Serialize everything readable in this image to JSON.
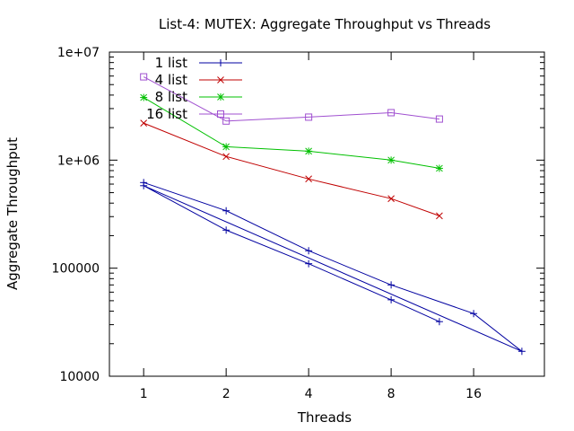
{
  "chart_data": {
    "type": "line",
    "title": "List-4: MUTEX: Aggregate Throughput vs Threads",
    "xlabel": "Threads",
    "ylabel": "Aggregate Throughput",
    "x_scale": "log2",
    "y_scale": "log10",
    "xlim": [
      0.75,
      29
    ],
    "ylim": [
      10000,
      10000000
    ],
    "x_ticks": [
      1,
      2,
      4,
      8,
      16
    ],
    "x_tick_labels": [
      "1",
      "2",
      "4",
      "8",
      "16"
    ],
    "y_ticks": [
      10000,
      100000,
      1000000,
      10000000
    ],
    "y_tick_labels": [
      "10000",
      "100000",
      "1e+06",
      "1e+07"
    ],
    "grid": false,
    "legend_position": "top-left",
    "series": [
      {
        "name": "1 list",
        "color": "#0000a0",
        "marker": "plus",
        "points": [
          [
            1,
            620000
          ],
          [
            2,
            340000
          ],
          [
            4,
            145000
          ],
          [
            8,
            70000
          ],
          [
            16,
            38000
          ],
          [
            24,
            17000
          ],
          [
            1,
            580000
          ],
          [
            2,
            225000
          ],
          [
            4,
            110000
          ],
          [
            8,
            51000
          ],
          [
            12,
            32000
          ]
        ]
      },
      {
        "name": "4 list",
        "color": "#c00000",
        "marker": "x",
        "points": [
          [
            1,
            2200000
          ],
          [
            2,
            1080000
          ],
          [
            4,
            670000
          ],
          [
            8,
            440000
          ],
          [
            12,
            305000
          ]
        ]
      },
      {
        "name": "8 list",
        "color": "#00c000",
        "marker": "star",
        "points": [
          [
            1,
            3800000
          ],
          [
            2,
            1330000
          ],
          [
            4,
            1210000
          ],
          [
            8,
            1000000
          ],
          [
            12,
            840000
          ]
        ]
      },
      {
        "name": "16 list",
        "color": "#a050d0",
        "marker": "square",
        "points": [
          [
            1,
            5900000
          ],
          [
            2,
            2300000
          ],
          [
            4,
            2500000
          ],
          [
            8,
            2750000
          ],
          [
            12,
            2400000
          ]
        ]
      }
    ]
  }
}
